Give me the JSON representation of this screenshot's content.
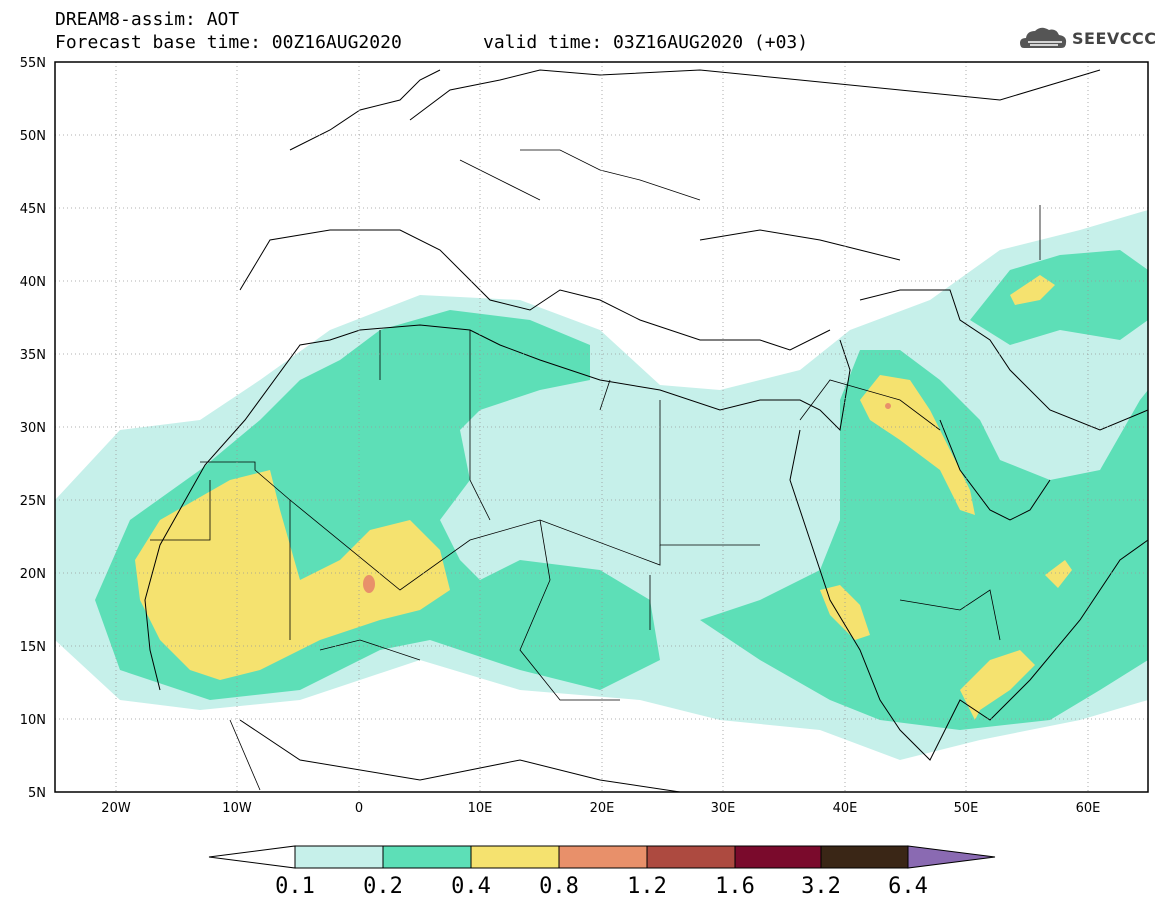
{
  "header": {
    "title": "DREAM8-assim: AOT",
    "base_time": "Forecast base time: 00Z16AUG2020",
    "valid_time": "valid time: 03Z16AUG2020 (+03)"
  },
  "logo": {
    "text": "SEEVCCC",
    "icon": "cloud-logo-icon"
  },
  "axes": {
    "lat_labels": [
      "55N",
      "50N",
      "45N",
      "40N",
      "35N",
      "30N",
      "25N",
      "20N",
      "15N",
      "10N",
      "5N"
    ],
    "lon_labels": [
      "20W",
      "10W",
      "0",
      "10E",
      "20E",
      "30E",
      "40E",
      "50E",
      "60E"
    ],
    "lon_range": [
      -25,
      65
    ],
    "lat_range": [
      5,
      55
    ]
  },
  "colorbar": {
    "ticks": [
      "0.1",
      "0.2",
      "0.4",
      "0.8",
      "1.2",
      "1.6",
      "3.2",
      "6.4"
    ],
    "colors": [
      "#ffffff",
      "#c6f0ea",
      "#5ddfb7",
      "#f5e26f",
      "#e8906a",
      "#ad4a40",
      "#7a0a2c",
      "#3a2616",
      "#8a6ab2"
    ]
  },
  "map_colors": {
    "aot_0_1": "#c6f0ea",
    "aot_0_2": "#5ddfb7",
    "aot_0_4": "#f5e26f",
    "aot_0_8": "#e8906a"
  }
}
